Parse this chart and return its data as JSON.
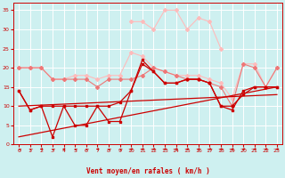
{
  "x": [
    0,
    1,
    2,
    3,
    4,
    5,
    6,
    7,
    8,
    9,
    10,
    11,
    12,
    13,
    14,
    15,
    16,
    17,
    18,
    19,
    20,
    21,
    22,
    23
  ],
  "gust_y": [
    null,
    null,
    null,
    null,
    null,
    null,
    null,
    null,
    null,
    null,
    32,
    32,
    30,
    35,
    35,
    30,
    33,
    32,
    25,
    null,
    null,
    null,
    null,
    null
  ],
  "line_light1": [
    20,
    20,
    20,
    17,
    17,
    18,
    18,
    17,
    18,
    18,
    24,
    23,
    20,
    19,
    18,
    18,
    18,
    17,
    16,
    12,
    21,
    21,
    15,
    20
  ],
  "line_light2": [
    20,
    20,
    20,
    17,
    17,
    17,
    17,
    15,
    17,
    17,
    17,
    18,
    20,
    19,
    18,
    17,
    17,
    16,
    15,
    10,
    21,
    20,
    15,
    20
  ],
  "line_dark1": [
    14,
    9,
    10,
    10,
    10,
    10,
    10,
    10,
    10,
    11,
    14,
    21,
    19,
    16,
    16,
    17,
    17,
    16,
    10,
    10,
    13,
    15,
    15,
    15
  ],
  "line_dark2": [
    14,
    9,
    10,
    2,
    10,
    5,
    5,
    10,
    6,
    6,
    14,
    22,
    19,
    16,
    16,
    17,
    17,
    16,
    10,
    9,
    14,
    15,
    15,
    15
  ],
  "trend1_x": [
    0,
    23
  ],
  "trend1_y": [
    10,
    13
  ],
  "trend2_x": [
    0,
    23
  ],
  "trend2_y": [
    2,
    15
  ],
  "background": "#cef0f0",
  "grid_color": "#ffffff",
  "color_dark": "#cc0000",
  "color_mid": "#ee7777",
  "color_light": "#ffbbbb",
  "xlabel": "Vent moyen/en rafales ( km/h )",
  "ylim": [
    0,
    37
  ],
  "xlim": [
    -0.5,
    23.5
  ],
  "yticks": [
    0,
    5,
    10,
    15,
    20,
    25,
    30,
    35
  ],
  "xticks": [
    0,
    1,
    2,
    3,
    4,
    5,
    6,
    7,
    8,
    9,
    10,
    11,
    12,
    13,
    14,
    15,
    16,
    17,
    18,
    19,
    20,
    21,
    22,
    23
  ],
  "wind_dirs": [
    225,
    225,
    270,
    225,
    270,
    225,
    225,
    270,
    225,
    225,
    270,
    270,
    270,
    270,
    270,
    270,
    270,
    270,
    270,
    270,
    270,
    270,
    270,
    270
  ]
}
